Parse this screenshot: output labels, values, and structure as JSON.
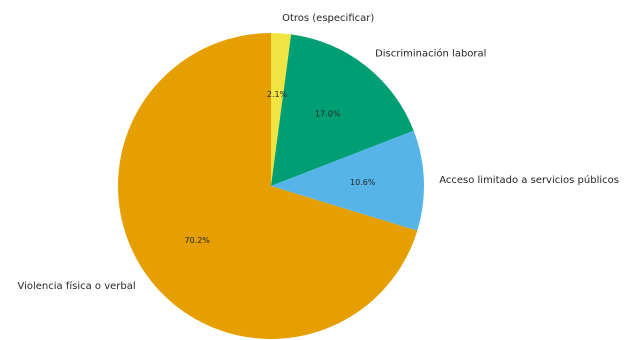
{
  "chart_data": {
    "type": "pie",
    "slices": [
      {
        "label": "Otros (especificar)",
        "value": 2.1,
        "pct_label": "2.1%",
        "color": "#f0e442"
      },
      {
        "label": "Discriminación laboral",
        "value": 17.0,
        "pct_label": "17.0%",
        "color": "#009e73"
      },
      {
        "label": "Acceso limitado a servicios públicos",
        "value": 10.6,
        "pct_label": "10.6%",
        "color": "#56b4e9"
      },
      {
        "label": "Violencia física o verbal",
        "value": 70.2,
        "pct_label": "70.2%",
        "color": "#e69f00"
      }
    ],
    "start_angle_deg": 90,
    "direction": "clockwise",
    "title": "",
    "legend": "none"
  }
}
